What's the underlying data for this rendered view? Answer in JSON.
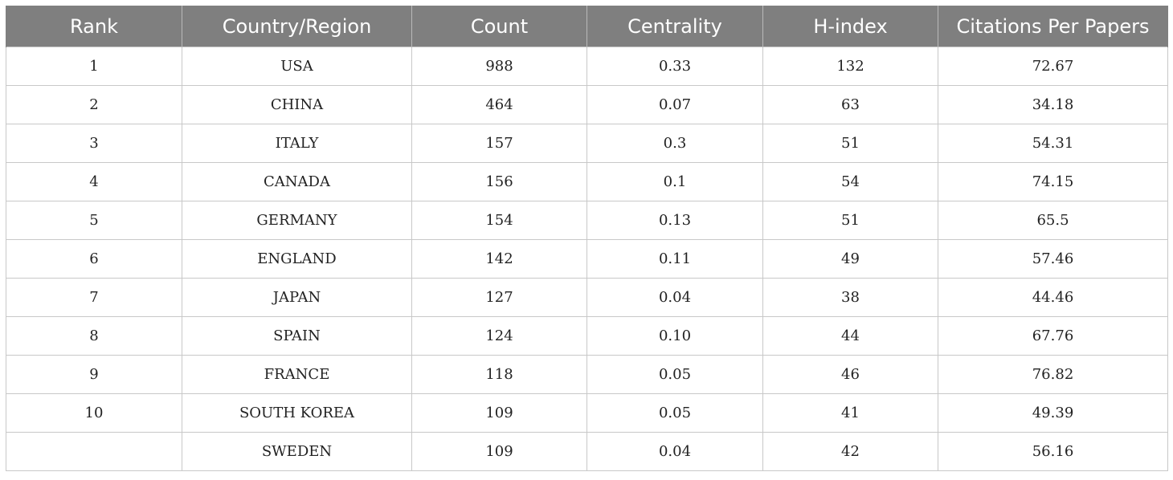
{
  "table": {
    "headers": [
      "Rank",
      "Country/Region",
      "Count",
      "Centrality",
      "H-index",
      "Citations Per Papers"
    ],
    "rows": [
      [
        "1",
        "USA",
        "988",
        "0.33",
        "132",
        "72.67"
      ],
      [
        "2",
        "CHINA",
        "464",
        "0.07",
        "63",
        "34.18"
      ],
      [
        "3",
        "ITALY",
        "157",
        "0.3",
        "51",
        "54.31"
      ],
      [
        "4",
        "CANADA",
        "156",
        "0.1",
        "54",
        "74.15"
      ],
      [
        "5",
        "GERMANY",
        "154",
        "0.13",
        "51",
        "65.5"
      ],
      [
        "6",
        "ENGLAND",
        "142",
        "0.11",
        "49",
        "57.46"
      ],
      [
        "7",
        "JAPAN",
        "127",
        "0.04",
        "38",
        "44.46"
      ],
      [
        "8",
        "SPAIN",
        "124",
        "0.10",
        "44",
        "67.76"
      ],
      [
        "9",
        "FRANCE",
        "118",
        "0.05",
        "46",
        "76.82"
      ],
      [
        "10",
        "SOUTH KOREA",
        "109",
        "0.05",
        "41",
        "49.39"
      ],
      [
        "",
        "SWEDEN",
        "109",
        "0.04",
        "42",
        "56.16"
      ]
    ]
  },
  "colors": {
    "header_bg": "#7f7f7f",
    "header_text": "#ffffff",
    "border": "#c8c8c8"
  }
}
